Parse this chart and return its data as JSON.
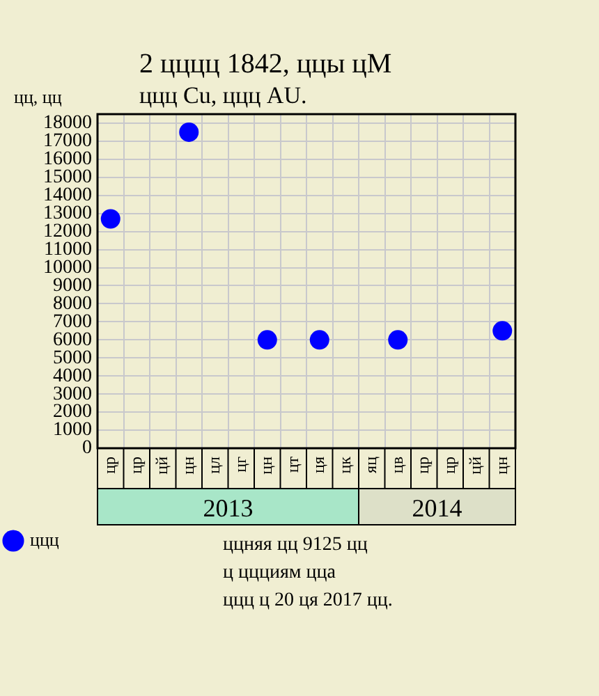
{
  "chart_data": {
    "type": "scatter",
    "title": "2 цццц 1842, ццы цМ",
    "subtitle": "ццц Cu, ццц AU.",
    "ylabel": "цц, цц",
    "categories": [
      "цр",
      "цр",
      "цй",
      "цн",
      "цл",
      "цг",
      "цн",
      "цт",
      "ця",
      "цк",
      "яц",
      "цв",
      "цр",
      "цр",
      "цй",
      "цн"
    ],
    "series": [
      {
        "name": "ццц",
        "color": "#0000ff",
        "values": [
          12700,
          null,
          null,
          17500,
          null,
          null,
          6000,
          null,
          6000,
          null,
          null,
          6000,
          null,
          null,
          null,
          6500
        ]
      }
    ],
    "ylim": [
      0,
      18500
    ],
    "yticks": [
      0,
      1000,
      2000,
      3000,
      4000,
      5000,
      6000,
      7000,
      8000,
      9000,
      10000,
      11000,
      12000,
      13000,
      14000,
      15000,
      16000,
      17000,
      18000
    ],
    "grid": true,
    "legend": "bottom left",
    "marker": "circle",
    "annotations": [
      "2013",
      "2014",
      "ццняя цц 9125 цц",
      "ц ццциям цца",
      "ццц ц 20 ця 2017 цц."
    ]
  }
}
